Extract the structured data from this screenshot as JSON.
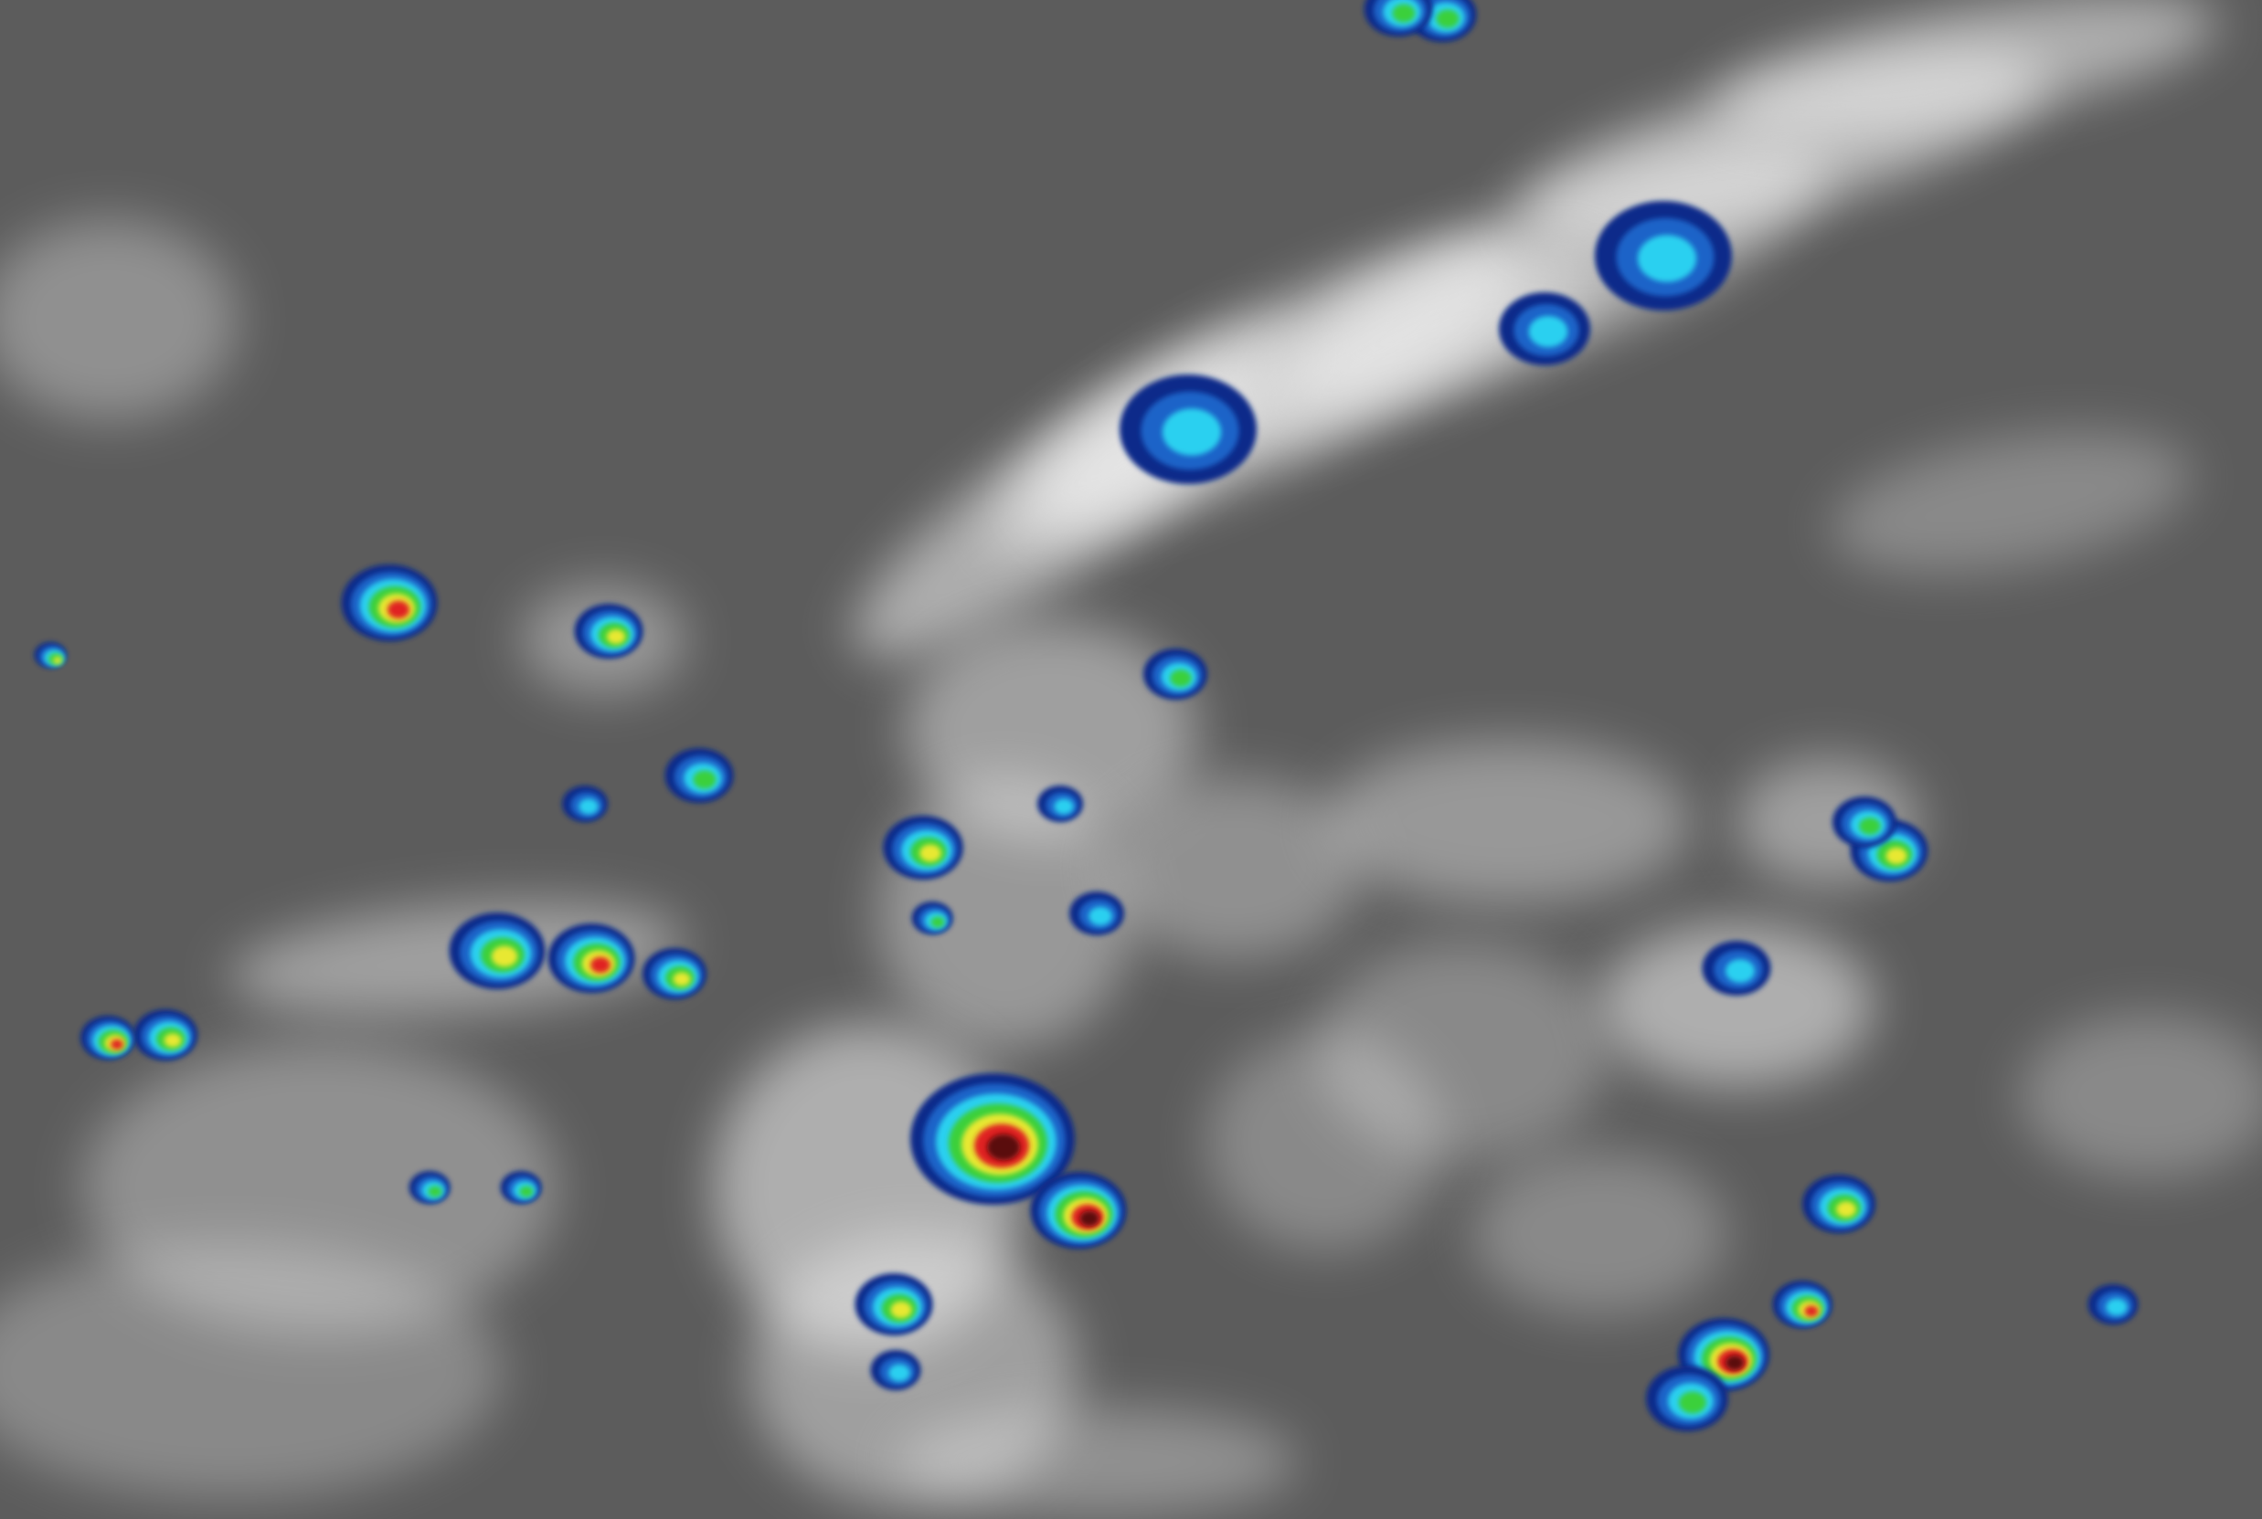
{
  "image": {
    "kind": "infrared satellite imagery",
    "background_color": "#5c5c5c",
    "cloud_color": "#f2f2f2",
    "convection_palette": [
      "#0a2a8a",
      "#1a64c8",
      "#2ad0f0",
      "#3ad03a",
      "#e8e830",
      "#e02020",
      "#5a1010"
    ],
    "features": [
      "cirrus-band",
      "scattered-clouds",
      "convective-cells"
    ]
  }
}
